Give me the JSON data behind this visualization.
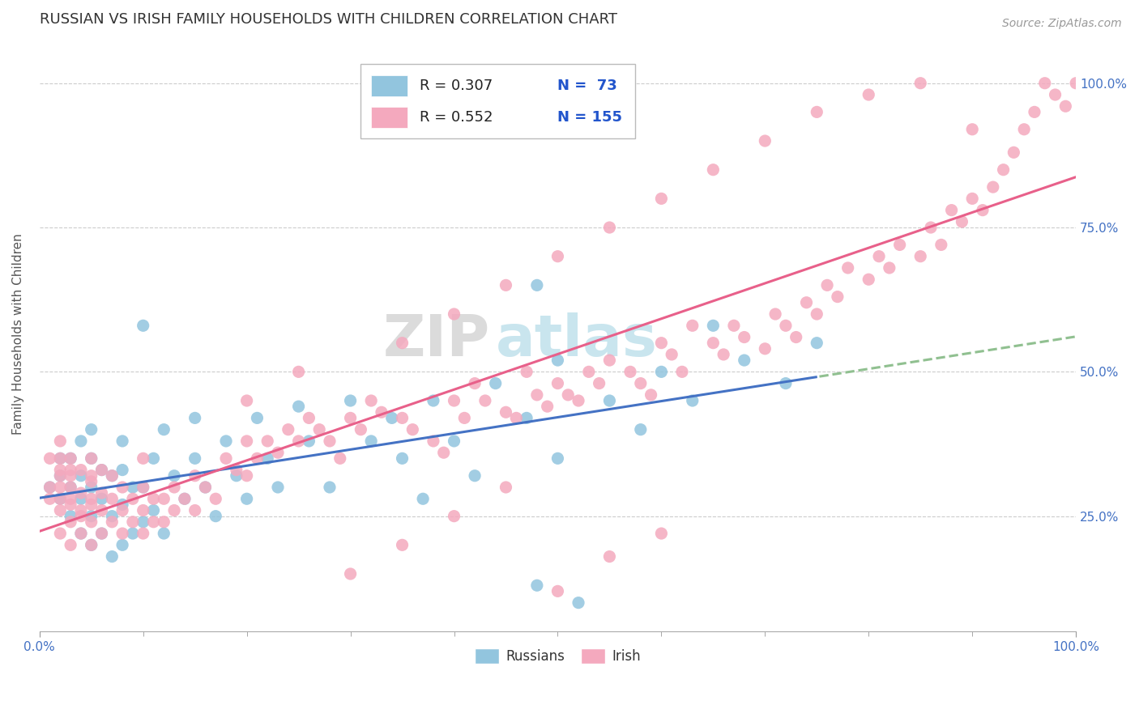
{
  "title": "RUSSIAN VS IRISH FAMILY HOUSEHOLDS WITH CHILDREN CORRELATION CHART",
  "source_text": "Source: ZipAtlas.com",
  "ylabel": "Family Households with Children",
  "legend_r1": "R = 0.307",
  "legend_n1": "N =  73",
  "legend_r2": "R = 0.552",
  "legend_n2": "N = 155",
  "russian_color": "#92C5DE",
  "irish_color": "#F4A9BE",
  "trendline_russian_color": "#4472C4",
  "trendline_irish_color": "#E8608A",
  "trendline_dashed_color": "#90C090",
  "title_fontsize": 13,
  "label_fontsize": 11,
  "tick_fontsize": 11,
  "background_color": "#FFFFFF",
  "grid_color": "#CCCCCC",
  "ytick_positions": [
    0.25,
    0.5,
    0.75,
    1.0
  ],
  "ytick_labels": [
    "25.0%",
    "50.0%",
    "75.0%",
    "100.0%"
  ],
  "watermark_zip_color": "#DDDDDD",
  "watermark_atlas_color": "#ADD8E6"
}
